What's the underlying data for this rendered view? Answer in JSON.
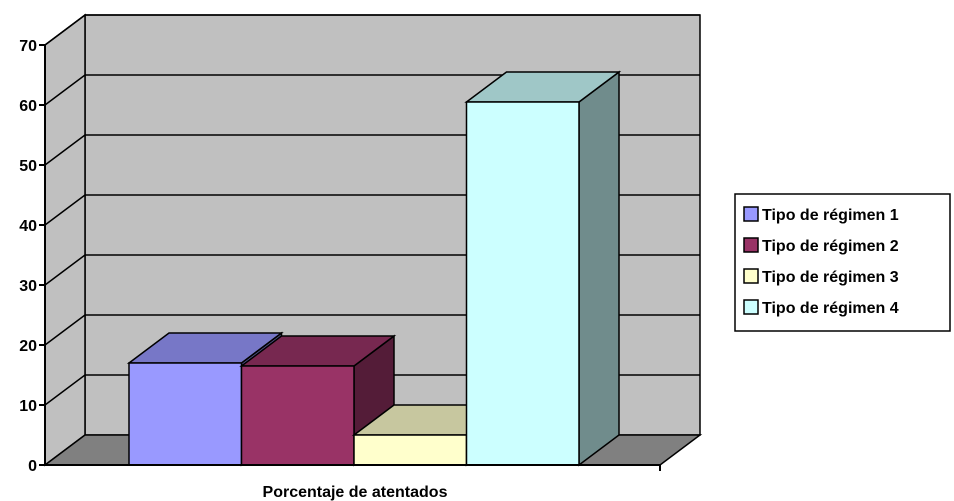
{
  "chart_data": {
    "type": "bar",
    "style": "3d-clustered-column",
    "title": "",
    "categories": [
      "Porcentaje de atentados"
    ],
    "xlabel": "Porcentaje de atentados",
    "ylabel": "",
    "ylim": [
      0,
      70
    ],
    "yticks": [
      "0",
      "10",
      "20",
      "30",
      "40",
      "50",
      "60",
      "70"
    ],
    "grid": true,
    "legend_position": "right",
    "series": [
      {
        "name": "Tipo de régimen 1",
        "values": [
          17
        ],
        "color": "#9999ff"
      },
      {
        "name": "Tipo de régimen 2",
        "values": [
          16.5
        ],
        "color": "#993366"
      },
      {
        "name": "Tipo de régimen 3",
        "values": [
          5
        ],
        "color": "#ffffcc"
      },
      {
        "name": "Tipo de régimen 4",
        "values": [
          60.5
        ],
        "color": "#ccffff"
      }
    ],
    "wall_color": "#c0c0c0",
    "floor_color": "#808080"
  }
}
